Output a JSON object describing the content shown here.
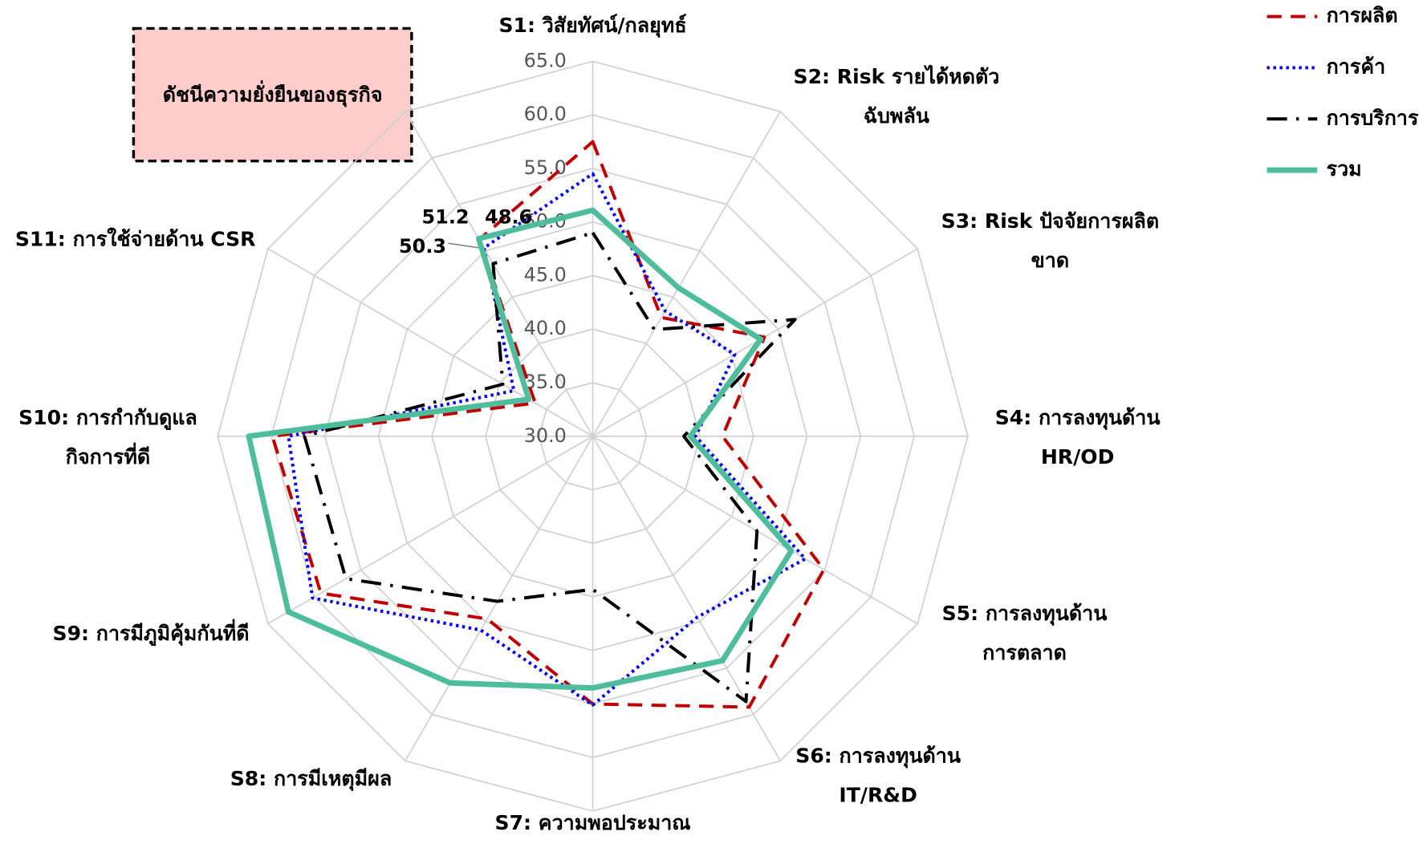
{
  "chart_data": {
    "type": "radar",
    "title": "ดัชนีความยั่งยืนของธุรกิจ",
    "categories": [
      "S1: วิสัยทัศน์/กลยุทธ์",
      "S2: Risk รายได้หดตัว ฉับพลัน",
      "S3: Risk ปัจจัยการผลิต ขาด",
      "S4: การลงทุนด้าน HR/OD",
      "S5: การลงทุนด้าน การตลาด",
      "S6: การลงทุนด้าน IT/R&D",
      "S7: ความพอประมาณ",
      "S8: การมีเหตุมีผล",
      "S9: การมีภูมิคุ้มกันที่ดี",
      "S10: การกำกับดูแล กิจการที่ดี",
      "S11: การใช้จ่ายด้าน CSR",
      null
    ],
    "ylim": [
      30,
      65
    ],
    "yticks": [
      {
        "value": 30,
        "label": "30.0"
      },
      {
        "value": 35,
        "label": "35.0"
      },
      {
        "value": 40,
        "label": "40.0"
      },
      {
        "value": 45,
        "label": "45.0"
      },
      {
        "value": 50,
        "label": "50.0"
      },
      {
        "value": 55,
        "label": "55.0"
      },
      {
        "value": 60,
        "label": "60.0"
      },
      {
        "value": 65,
        "label": "65.0"
      }
    ],
    "grid": true,
    "legend": "top-right",
    "series": [
      {
        "name": "การผลิต",
        "color": "#c00000",
        "style": "dashed",
        "values": [
          57.5,
          42.8,
          48.5,
          42.1,
          54.9,
          59.2,
          55,
          49.7,
          59.3,
          59.9,
          36.2,
          51.2
        ],
        "value_labels": [
          null,
          null,
          null,
          null,
          null,
          null,
          null,
          null,
          null,
          null,
          null,
          "51.2"
        ]
      },
      {
        "name": "การค้า",
        "color": "#0000ff",
        "style": "dotted",
        "values": [
          54.5,
          43.5,
          45.3,
          39.6,
          52.9,
          49.5,
          55.1,
          50.9,
          60.2,
          58.4,
          38.5,
          50.3
        ],
        "value_labels": [
          null,
          null,
          null,
          null,
          null,
          null,
          null,
          null,
          null,
          null,
          null,
          "50.3"
        ]
      },
      {
        "name": "การบริการ",
        "color": "#000000",
        "style": "dashdot",
        "values": [
          49,
          41.5,
          51.8,
          38.5,
          47.7,
          58.6,
          44.3,
          47.8,
          56.6,
          56.9,
          39.7,
          48.6
        ],
        "value_labels": [
          null,
          null,
          null,
          null,
          null,
          null,
          null,
          null,
          null,
          null,
          null,
          "48.6"
        ]
      },
      {
        "name": "รวม",
        "color": "#4dbd9b",
        "style": "solid",
        "values": [
          51.1,
          46,
          48.1,
          39.1,
          51.4,
          54.2,
          53.5,
          56.6,
          62.8,
          62.1,
          36.9,
          51.3
        ]
      }
    ]
  }
}
